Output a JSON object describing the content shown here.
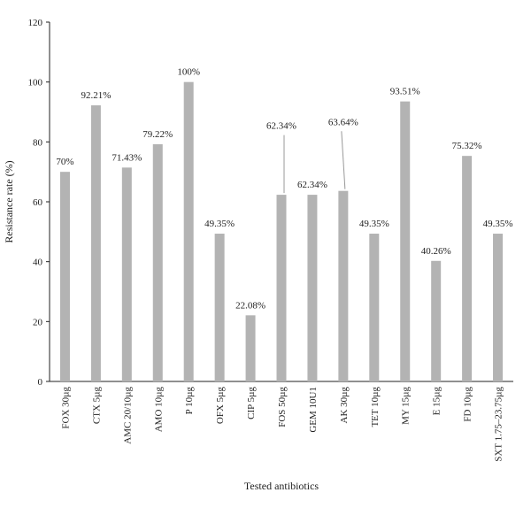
{
  "chart_data": {
    "type": "bar",
    "xlabel": "Tested antibiotics",
    "ylabel": "Resistance rate (%)",
    "ylim": [
      0,
      120
    ],
    "yticks": [
      0,
      20,
      40,
      60,
      80,
      100,
      120
    ],
    "grid": false,
    "bar_color": "#b3b3b3",
    "categories": [
      "FOX 30µg",
      "CTX 5µg",
      "AMC 20/10µg",
      "AMO 10µg",
      "P 10µg",
      "OFX 5µg",
      "CIP 5µg",
      "FOS 50µg",
      "GEM 10U1",
      "AK 30µg",
      "TET 10µg",
      "MY 15µg",
      "E 15µg",
      "FD 10µg",
      "SXT 1.75–23.75µg"
    ],
    "values": [
      70,
      92.21,
      71.43,
      79.22,
      100,
      49.35,
      22.08,
      62.34,
      62.34,
      63.64,
      49.35,
      93.51,
      40.26,
      75.32,
      49.35
    ],
    "data_labels": [
      "70%",
      "92.21%",
      "71.43%",
      "79.22%",
      "100%",
      "49.35%",
      "22.08%",
      "62.34%",
      "62.34%",
      "63.64%",
      "49.35%",
      "93.51%",
      "40.26%",
      "75.32%",
      "49.35%"
    ]
  }
}
